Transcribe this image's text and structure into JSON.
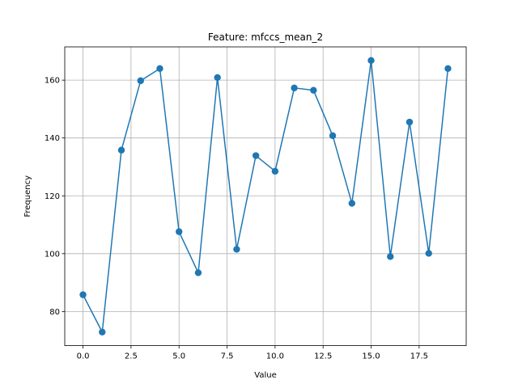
{
  "chart_data": {
    "type": "line",
    "title": "Feature: mfccs_mean_2",
    "xlabel": "Value",
    "ylabel": "Frequency",
    "xlim": [
      -0.95,
      19.95
    ],
    "ylim": [
      68.2,
      171.5
    ],
    "x_ticks": [
      0,
      2.5,
      5,
      7.5,
      10,
      12.5,
      15,
      17.5
    ],
    "x_tick_labels": [
      "0.0",
      "2.5",
      "5.0",
      "7.5",
      "10.0",
      "12.5",
      "15.0",
      "17.5"
    ],
    "y_ticks": [
      80,
      100,
      120,
      140,
      160
    ],
    "y_tick_labels": [
      "80",
      "100",
      "120",
      "140",
      "160"
    ],
    "grid": true,
    "marker": "circle",
    "color": "#1f77b4",
    "series": [
      {
        "x": [
          0,
          1,
          2,
          3,
          4,
          5,
          6,
          7,
          8,
          9,
          10,
          11,
          12,
          13,
          14,
          15,
          16,
          17,
          18,
          19
        ],
        "values": [
          85.8,
          72.9,
          135.8,
          159.8,
          164.0,
          107.6,
          93.4,
          160.9,
          101.5,
          133.9,
          128.5,
          157.3,
          156.5,
          140.8,
          117.4,
          166.8,
          99.0,
          145.5,
          100.1,
          164.0
        ]
      }
    ]
  }
}
